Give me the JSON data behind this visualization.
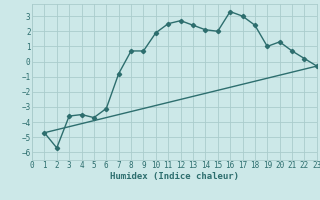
{
  "xlabel": "Humidex (Indice chaleur)",
  "background_color": "#cce8e8",
  "grid_color": "#aacccc",
  "line_color": "#2d6e6e",
  "xlim": [
    0,
    23
  ],
  "ylim": [
    -6.5,
    3.8
  ],
  "xticks": [
    0,
    1,
    2,
    3,
    4,
    5,
    6,
    7,
    8,
    9,
    10,
    11,
    12,
    13,
    14,
    15,
    16,
    17,
    18,
    19,
    20,
    21,
    22,
    23
  ],
  "yticks": [
    -6,
    -5,
    -4,
    -3,
    -2,
    -1,
    0,
    1,
    2,
    3
  ],
  "line1_x": [
    1,
    2,
    3,
    4,
    5,
    6,
    7,
    8,
    9,
    10,
    11,
    12,
    13,
    14,
    15,
    16,
    17,
    18,
    19,
    20,
    21,
    22,
    23
  ],
  "line1_y": [
    -4.7,
    -5.7,
    -3.6,
    -3.5,
    -3.7,
    -3.1,
    -0.8,
    0.7,
    0.7,
    1.9,
    2.5,
    2.7,
    2.4,
    2.1,
    2.0,
    3.3,
    3.0,
    2.4,
    1.0,
    1.3,
    0.7,
    0.2,
    -0.3
  ],
  "line2_x": [
    1,
    23
  ],
  "line2_y": [
    -4.7,
    -0.3
  ],
  "marker": "D",
  "marker_size": 2.2,
  "linewidth": 1.0,
  "tick_fontsize": 5.5,
  "xlabel_fontsize": 6.5
}
